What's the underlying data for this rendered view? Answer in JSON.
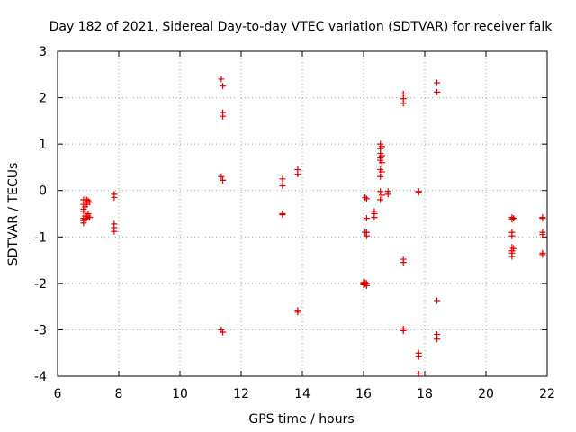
{
  "chart_data": {
    "type": "scatter",
    "title": "Day 182 of 2021, Sidereal Day-to-day VTEC variation (SDTVAR) for receiver falk",
    "xlabel": "GPS time / hours",
    "ylabel": "SDTVAR / TECUs",
    "xlim": [
      6,
      22
    ],
    "ylim": [
      -4,
      3
    ],
    "xticks": [
      6,
      8,
      10,
      12,
      14,
      16,
      18,
      20,
      22
    ],
    "yticks": [
      -4,
      -3,
      -2,
      -1,
      0,
      1,
      2,
      3
    ],
    "grid": true,
    "marker": "plus",
    "colors": {
      "points": "#dd0000",
      "grid": "#a0a0a0",
      "axis": "#000000"
    },
    "series": [
      {
        "name": "SDTVAR",
        "points": [
          [
            6.85,
            -0.2
          ],
          [
            6.85,
            -0.3
          ],
          [
            6.85,
            -0.4
          ],
          [
            6.85,
            -0.45
          ],
          [
            6.85,
            -0.6
          ],
          [
            6.85,
            -0.65
          ],
          [
            6.85,
            -0.7
          ],
          [
            6.9,
            -0.25
          ],
          [
            6.9,
            -0.35
          ],
          [
            6.9,
            -0.55
          ],
          [
            6.9,
            -0.6
          ],
          [
            6.9,
            -0.62
          ],
          [
            6.95,
            -0.2
          ],
          [
            6.95,
            -0.3
          ],
          [
            6.95,
            -0.55
          ],
          [
            6.95,
            -0.6
          ],
          [
            7.0,
            -0.22
          ],
          [
            7.0,
            -0.5
          ],
          [
            7.0,
            -0.55
          ],
          [
            7.05,
            -0.25
          ],
          [
            7.05,
            -0.58
          ],
          [
            7.85,
            -0.08
          ],
          [
            7.85,
            -0.15
          ],
          [
            7.85,
            -0.72
          ],
          [
            7.85,
            -0.8
          ],
          [
            7.85,
            -0.88
          ],
          [
            11.35,
            2.4
          ],
          [
            11.35,
            0.3
          ],
          [
            11.35,
            -3.0
          ],
          [
            11.4,
            2.25
          ],
          [
            11.4,
            1.68
          ],
          [
            11.4,
            1.6
          ],
          [
            11.4,
            0.22
          ],
          [
            11.4,
            -3.05
          ],
          [
            13.35,
            0.25
          ],
          [
            13.35,
            0.1
          ],
          [
            13.35,
            -0.5
          ],
          [
            13.35,
            -0.52
          ],
          [
            13.85,
            0.45
          ],
          [
            13.85,
            0.35
          ],
          [
            13.85,
            -2.58
          ],
          [
            13.85,
            -2.62
          ],
          [
            16.0,
            -1.98
          ],
          [
            16.0,
            -2.0
          ],
          [
            16.0,
            -2.03
          ],
          [
            16.05,
            -0.15
          ],
          [
            16.05,
            -0.9
          ],
          [
            16.05,
            -1.98
          ],
          [
            16.05,
            -2.02
          ],
          [
            16.1,
            -0.18
          ],
          [
            16.1,
            -0.6
          ],
          [
            16.1,
            -0.9
          ],
          [
            16.1,
            -0.98
          ],
          [
            16.1,
            -2.0
          ],
          [
            16.1,
            -2.05
          ],
          [
            16.35,
            -0.45
          ],
          [
            16.35,
            -0.5
          ],
          [
            16.35,
            -0.58
          ],
          [
            16.55,
            1.0
          ],
          [
            16.55,
            0.9
          ],
          [
            16.55,
            0.8
          ],
          [
            16.55,
            0.7
          ],
          [
            16.55,
            0.65
          ],
          [
            16.55,
            0.45
          ],
          [
            16.55,
            0.3
          ],
          [
            16.55,
            -0.02
          ],
          [
            16.55,
            -0.2
          ],
          [
            16.6,
            0.95
          ],
          [
            16.6,
            0.75
          ],
          [
            16.6,
            0.6
          ],
          [
            16.6,
            0.4
          ],
          [
            16.6,
            -0.1
          ],
          [
            16.8,
            -0.02
          ],
          [
            16.8,
            -0.08
          ],
          [
            17.3,
            2.08
          ],
          [
            17.3,
            1.98
          ],
          [
            17.3,
            1.88
          ],
          [
            17.3,
            -1.48
          ],
          [
            17.3,
            -1.55
          ],
          [
            17.3,
            -2.98
          ],
          [
            17.3,
            -3.02
          ],
          [
            17.8,
            -0.02
          ],
          [
            17.8,
            -0.04
          ],
          [
            17.8,
            -3.5
          ],
          [
            17.8,
            -3.58
          ],
          [
            17.8,
            -3.95
          ],
          [
            18.4,
            2.32
          ],
          [
            18.4,
            2.12
          ],
          [
            18.4,
            -2.37
          ],
          [
            18.4,
            -3.1
          ],
          [
            18.4,
            -3.2
          ],
          [
            20.85,
            -0.58
          ],
          [
            20.85,
            -0.62
          ],
          [
            20.85,
            -0.9
          ],
          [
            20.85,
            -0.98
          ],
          [
            20.85,
            -1.22
          ],
          [
            20.85,
            -1.3
          ],
          [
            20.85,
            -1.35
          ],
          [
            20.85,
            -1.42
          ],
          [
            20.9,
            -0.6
          ],
          [
            20.9,
            -1.25
          ],
          [
            21.85,
            -0.58
          ],
          [
            21.85,
            -0.6
          ],
          [
            21.85,
            -0.9
          ],
          [
            21.85,
            -0.95
          ],
          [
            21.85,
            -1.35
          ],
          [
            21.85,
            -1.38
          ]
        ]
      }
    ]
  }
}
